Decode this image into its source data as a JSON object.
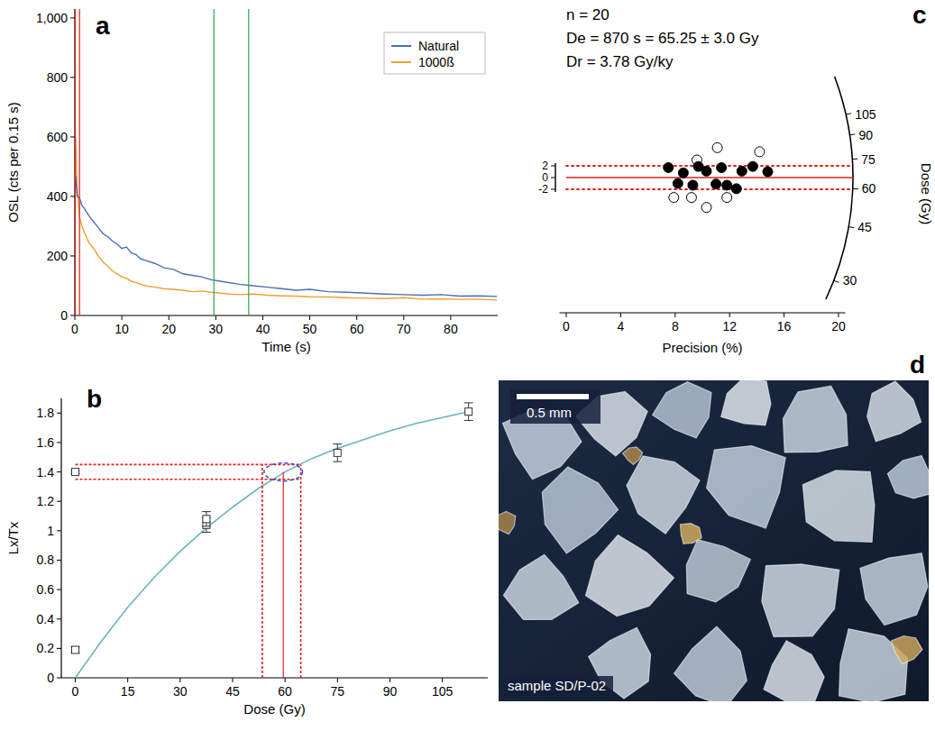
{
  "chart_data": [
    {
      "type": "line",
      "panel_label": "a",
      "x_label": "Time (s)",
      "y_label": "OSL (cts per 0.15 s)",
      "xlim": [
        0,
        90
      ],
      "ylim": [
        0,
        1030
      ],
      "xticks": [
        0,
        10,
        20,
        30,
        40,
        50,
        60,
        70,
        80
      ],
      "yticks": [
        0,
        200,
        400,
        600,
        800,
        {
          "value": 1000,
          "label": "1,000"
        }
      ],
      "legend": "top-right",
      "x": [
        0.15,
        0.5,
        1,
        1.5,
        2,
        3,
        4,
        5,
        6,
        7,
        8,
        9,
        10,
        11,
        12,
        13,
        14,
        15,
        17,
        19,
        21,
        23,
        25,
        27,
        29,
        31,
        33,
        35,
        38,
        41,
        44,
        47,
        50,
        54,
        58,
        62,
        66,
        70,
        74,
        78,
        82,
        86,
        89.85
      ],
      "series": [
        {
          "name": "Natural",
          "color": "#4a6fb5",
          "values": [
            470,
            400,
            395,
            370,
            360,
            335,
            315,
            295,
            275,
            265,
            250,
            240,
            225,
            230,
            210,
            205,
            190,
            185,
            175,
            160,
            155,
            140,
            135,
            130,
            120,
            115,
            110,
            105,
            100,
            95,
            90,
            85,
            88,
            80,
            78,
            75,
            72,
            70,
            68,
            70,
            65,
            66,
            64
          ]
        },
        {
          "name": "1000ß",
          "color": "#f0a030",
          "values": [
            600,
            430,
            330,
            300,
            280,
            245,
            225,
            200,
            180,
            165,
            150,
            140,
            130,
            125,
            115,
            110,
            105,
            100,
            95,
            90,
            88,
            85,
            80,
            82,
            78,
            75,
            72,
            70,
            72,
            68,
            66,
            65,
            63,
            62,
            60,
            58,
            57,
            60,
            55,
            56,
            54,
            55,
            52
          ]
        }
      ],
      "signal_window": [
        0.1,
        1.0
      ],
      "background_window": [
        29.6,
        37.0
      ]
    },
    {
      "type": "scatter",
      "panel_label": "b",
      "x_label": "Dose (Gy)",
      "y_label": "Lx/Tx",
      "xlim": [
        -4,
        118
      ],
      "ylim": [
        0,
        1.9
      ],
      "xticks": [
        0,
        15,
        30,
        45,
        60,
        75,
        90,
        105
      ],
      "yticks": [
        0,
        0.2,
        0.4,
        0.6,
        0.8,
        1,
        1.2,
        1.4,
        1.6,
        1.8
      ],
      "points": {
        "x": [
          0,
          37.5,
          37.5,
          75,
          112.5
        ],
        "values": [
          0.19,
          1.04,
          1.08,
          1.53,
          1.81
        ],
        "errors": [
          0.02,
          0.05,
          0.05,
          0.06,
          0.06
        ]
      },
      "curve": {
        "x": [
          0,
          7.5,
          15,
          22.5,
          30,
          37.5,
          45,
          52.5,
          60,
          67.5,
          75,
          82.5,
          90,
          97.5,
          105,
          112.5
        ],
        "values": [
          0,
          0.25,
          0.48,
          0.68,
          0.86,
          1.02,
          1.16,
          1.29,
          1.4,
          1.49,
          1.56,
          1.62,
          1.68,
          1.73,
          1.77,
          1.81
        ]
      },
      "natural_lx_tx": 1.4,
      "natural_error": 0.01,
      "natural_band": [
        1.35,
        1.45
      ],
      "de": 59.5,
      "de_range": [
        53.5,
        64.5
      ]
    },
    {
      "type": "radial",
      "panel_label": "c",
      "annotations": [
        "n = 20",
        "De = 870 s = 65.25 ± 3.0 Gy",
        "Dr = 3.78 Gy/ky"
      ],
      "x_label": "Precision (%)",
      "xlim": [
        -0.5,
        20.5
      ],
      "xticks": [
        0,
        4,
        8,
        12,
        16,
        20
      ],
      "ylim": [
        -12,
        12
      ],
      "yticks": [
        2,
        0,
        -2
      ],
      "band": [
        -2,
        2
      ],
      "central_dose": 65.25,
      "dose_label": "Dose (Gy)",
      "dose_ticks": [
        30,
        45,
        60,
        75,
        90,
        105
      ],
      "points_filled": {
        "x": [
          7.5,
          8.2,
          8.6,
          9.3,
          9.7,
          10.3,
          11.0,
          11.4,
          11.8,
          12.5,
          12.9,
          13.7,
          14.8
        ],
        "values": [
          1.7,
          -1.0,
          0.8,
          -1.3,
          1.9,
          1.1,
          -1.1,
          1.7,
          -1.3,
          -1.9,
          1.1,
          1.9,
          1.0
        ]
      },
      "points_open": {
        "x": [
          7.9,
          9.6,
          9.2,
          11.1,
          10.3,
          11.8,
          14.2
        ],
        "values": [
          -3.4,
          3.0,
          -3.4,
          5.1,
          -5.1,
          -3.4,
          4.4
        ]
      }
    }
  ],
  "image": {
    "panel_label": "d",
    "scale_bar": "0.5 mm",
    "caption": "sample SD/P-02"
  }
}
